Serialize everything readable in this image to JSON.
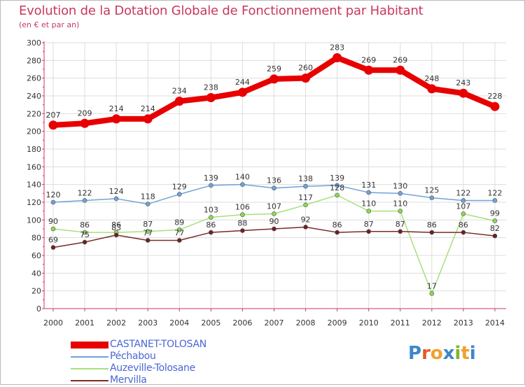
{
  "title": "Evolution de la Dotation Globale de Fonctionnement par Habitant",
  "subtitle": "(en € et par an)",
  "logo_text": "Proxiti",
  "colors": {
    "title": "#c8385e",
    "axis": "#c8385e",
    "grid": "#dddddd",
    "legend_text": "#4a66d6"
  },
  "chart_data": {
    "type": "line",
    "title": "Evolution de la Dotation Globale de Fonctionnement par Habitant",
    "subtitle": "(en € et par an)",
    "xlabel": "",
    "ylabel": "",
    "ylim": [
      0,
      300
    ],
    "yticks": [
      0,
      20,
      40,
      60,
      80,
      100,
      120,
      140,
      160,
      180,
      200,
      220,
      240,
      260,
      280,
      300
    ],
    "categories": [
      "2000",
      "2001",
      "2002",
      "2003",
      "2004",
      "2005",
      "2006",
      "2007",
      "2008",
      "2009",
      "2010",
      "2011",
      "2012",
      "2013",
      "2014"
    ],
    "grid": true,
    "legend_position": "bottom-left",
    "series": [
      {
        "name": "CASTANET-TOLOSAN",
        "color": "#e80000",
        "point_color": "#e80000",
        "emphasis": true,
        "values": [
          207,
          209,
          214,
          214,
          234,
          238,
          244,
          259,
          260,
          283,
          269,
          269,
          248,
          243,
          228
        ]
      },
      {
        "name": "Péchabou",
        "color": "#6fa3d9",
        "point_color": "#6fa3d9",
        "emphasis": false,
        "values": [
          120,
          122,
          124,
          118,
          129,
          139,
          140,
          136,
          138,
          139,
          131,
          130,
          125,
          122,
          122
        ]
      },
      {
        "name": "Auzeville-Tolosane",
        "color": "#a6e07d",
        "point_color": "#8ed94f",
        "emphasis": false,
        "values": [
          90,
          86,
          86,
          87,
          89,
          103,
          106,
          107,
          117,
          128,
          110,
          110,
          17,
          107,
          99
        ]
      },
      {
        "name": "Mervilla",
        "color": "#7a2a2a",
        "point_color": "#6e2020",
        "emphasis": false,
        "values": [
          69,
          75,
          83,
          77,
          77,
          86,
          88,
          90,
          92,
          86,
          87,
          87,
          86,
          86,
          82
        ]
      }
    ]
  }
}
